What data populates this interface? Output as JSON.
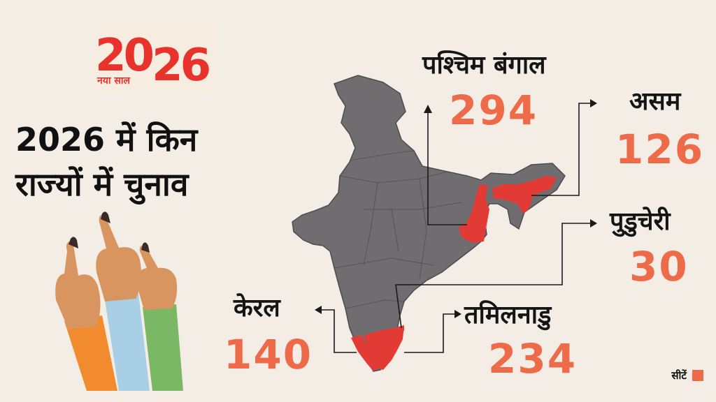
{
  "logo": {
    "year": "2026",
    "year_a": "20",
    "year_b": "26",
    "tagline": "नया साल"
  },
  "headline": {
    "line1": "2026 में किन",
    "line2": "राज्यों में चुनाव"
  },
  "states": [
    {
      "name": "पश्चिम बंगाल",
      "seats": "294"
    },
    {
      "name": "असम",
      "seats": "126"
    },
    {
      "name": "पुडुचेरी",
      "seats": "30"
    },
    {
      "name": "तमिलनाडु",
      "seats": "234"
    },
    {
      "name": "केरल",
      "seats": "140"
    }
  ],
  "legend": {
    "label": "सीटें"
  },
  "colors": {
    "background": "#f4ede5",
    "map_base": "#6f6d6f",
    "election_state": "#e23b35",
    "seat_number": "#ee6b4a",
    "logo": "#e8332c"
  },
  "icons": [
    "voting-finger-icon",
    "arrow-head-icon"
  ]
}
